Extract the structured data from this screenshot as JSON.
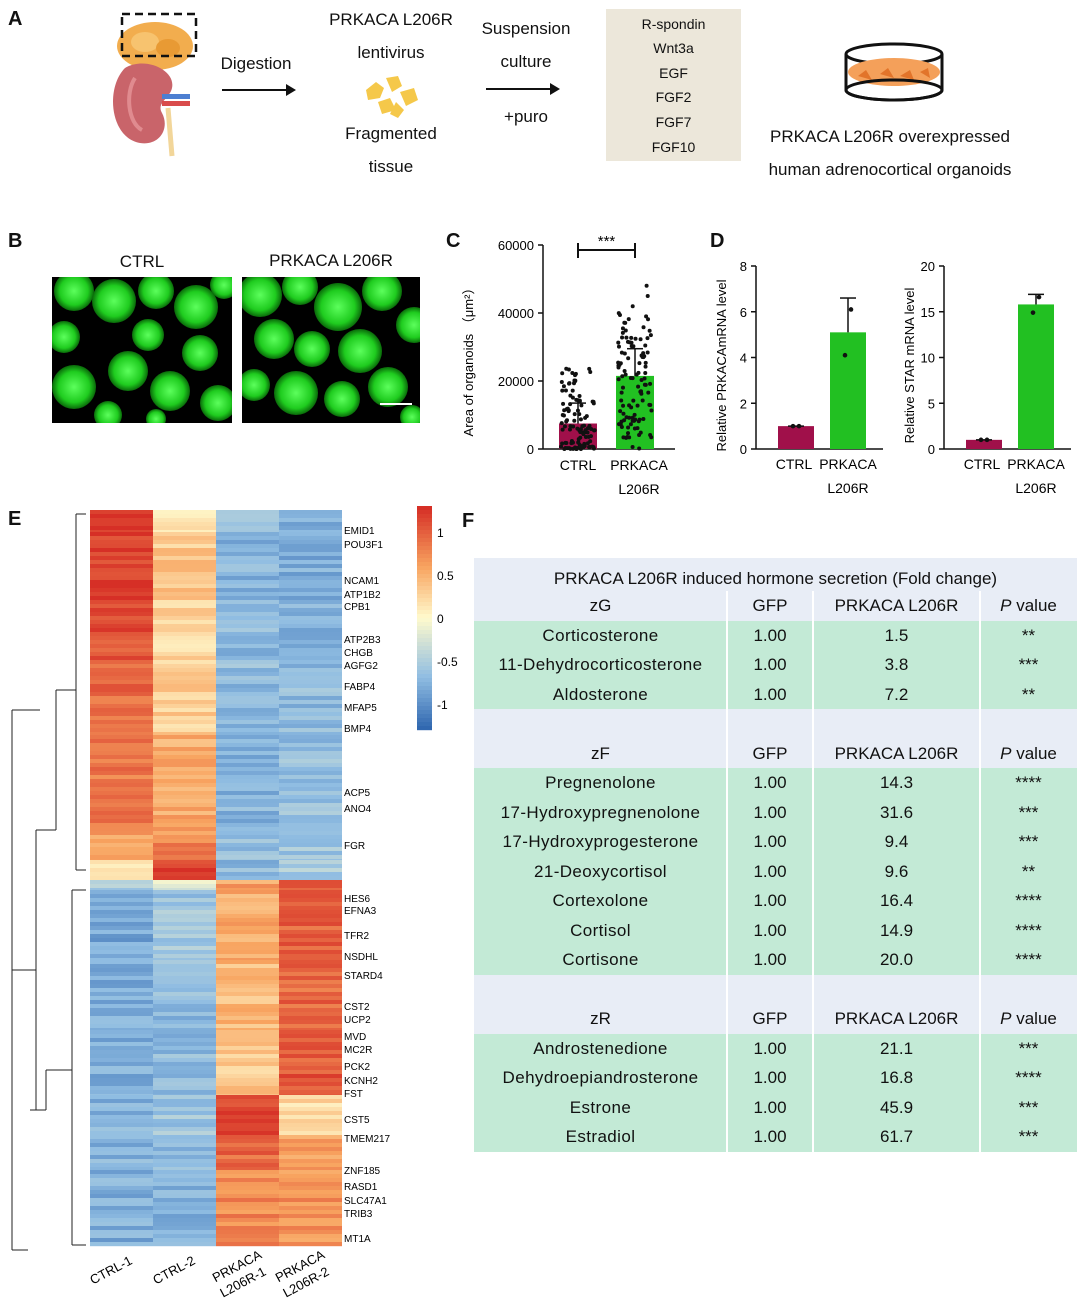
{
  "panelA": {
    "label": "A",
    "digestion": "Digestion",
    "lentivirus_line1": "PRKACA L206R",
    "lentivirus_line2": "lentivirus",
    "fragmented_line1": "Fragmented",
    "fragmented_line2": "tissue",
    "suspension_line1": "Suspension",
    "suspension_line2": "culture",
    "puro": "+puro",
    "factors": [
      "R-spondin",
      "Wnt3a",
      "EGF",
      "FGF2",
      "FGF7",
      "FGF10"
    ],
    "result_line1": "PRKACA L206R overexpressed",
    "result_line2": "human adrenocortical organoids"
  },
  "panelB": {
    "label": "B",
    "ctrl_title": "CTRL",
    "mut_title": "PRKACA L206R"
  },
  "panelC": {
    "label": "C",
    "ylabel": "Area of organoids （μm²）",
    "significance": "***",
    "xlabel_ctrl": "CTRL",
    "xlabel_mut_line1": "PRKACA",
    "xlabel_mut_line2": "L206R",
    "ticks": [
      "0",
      "20000",
      "40000",
      "60000"
    ]
  },
  "panelD": {
    "label": "D",
    "left_ylabel": "Relative PRKACAmRNA level",
    "right_ylabel": "Relative STAR mRNA level",
    "left_ticks": [
      "0",
      "2",
      "4",
      "6",
      "8"
    ],
    "right_ticks": [
      "0",
      "5",
      "10",
      "15",
      "20"
    ],
    "xlabel_ctrl": "CTRL",
    "xlabel_mut_line1": "PRKACA",
    "xlabel_mut_line2": "L206R"
  },
  "panelE": {
    "label": "E",
    "genes": [
      "EMID1",
      "POU3F1",
      "NCAM1",
      "ATP1B2",
      "CPB1",
      "ATP2B3",
      "CHGB",
      "AGFG2",
      "FABP4",
      "MFAP5",
      "BMP4",
      "ACP5",
      "ANO4",
      "FGR",
      "HES6",
      "EFNA3",
      "TFR2",
      "NSDHL",
      "STARD4",
      "CST2",
      "UCP2",
      "MVD",
      "MC2R",
      "PCK2",
      "KCNH2",
      "FST",
      "CST5",
      "TMEM217",
      "ZNF185",
      "RASD1",
      "SLC47A1",
      "TRIB3",
      "MT1A"
    ],
    "samples": [
      "CTRL-1",
      "CTRL-2",
      "PRKACA L206R-1",
      "PRKACA L206R-2"
    ],
    "scale": [
      "1",
      "0.5",
      "0",
      "-0.5",
      "-1"
    ]
  },
  "panelF": {
    "label": "F",
    "title": "PRKACA L206R induced hormone secretion (Fold change)",
    "col_gfp": "GFP",
    "col_mut": "PRKACA L206R",
    "col_p_italic": "P",
    "col_p_rest": " value",
    "zones": [
      {
        "name": "zG",
        "rows": [
          {
            "hormone": "Corticosterone",
            "gfp": "1.00",
            "fc": "1.5",
            "p": "**"
          },
          {
            "hormone": "11-Dehydrocorticosterone",
            "gfp": "1.00",
            "fc": "3.8",
            "p": "***"
          },
          {
            "hormone": "Aldosterone",
            "gfp": "1.00",
            "fc": "7.2",
            "p": "**"
          }
        ]
      },
      {
        "name": "zF",
        "rows": [
          {
            "hormone": "Pregnenolone",
            "gfp": "1.00",
            "fc": "14.3",
            "p": "****"
          },
          {
            "hormone": "17-Hydroxypregnenolone",
            "gfp": "1.00",
            "fc": "31.6",
            "p": "***"
          },
          {
            "hormone": "17-Hydroxyprogesterone",
            "gfp": "1.00",
            "fc": "9.4",
            "p": "***"
          },
          {
            "hormone": "21-Deoxycortisol",
            "gfp": "1.00",
            "fc": "9.6",
            "p": "**"
          },
          {
            "hormone": "Cortexolone",
            "gfp": "1.00",
            "fc": "16.4",
            "p": "****"
          },
          {
            "hormone": "Cortisol",
            "gfp": "1.00",
            "fc": "14.9",
            "p": "****"
          },
          {
            "hormone": "Cortisone",
            "gfp": "1.00",
            "fc": "20.0",
            "p": "****"
          }
        ]
      },
      {
        "name": "zR",
        "rows": [
          {
            "hormone": "Androstenedione",
            "gfp": "1.00",
            "fc": "21.1",
            "p": "***"
          },
          {
            "hormone": "Dehydroepiandrosterone",
            "gfp": "1.00",
            "fc": "16.8",
            "p": "****"
          },
          {
            "hormone": "Estrone",
            "gfp": "1.00",
            "fc": "45.9",
            "p": "***"
          },
          {
            "hormone": "Estradiol",
            "gfp": "1.00",
            "fc": "61.7",
            "p": "***"
          }
        ]
      }
    ]
  },
  "chart_data": [
    {
      "type": "bar",
      "categories": [
        "CTRL",
        "PRKACA L206R"
      ],
      "values": [
        7500,
        21500
      ],
      "error_upper": [
        13500,
        29500
      ],
      "ylim": [
        0,
        60000
      ],
      "ylabel": "Area of organoids （μm²）",
      "significance": "***",
      "colors": [
        "#a0104a",
        "#22c022"
      ]
    },
    {
      "type": "bar",
      "categories": [
        "CTRL",
        "PRKACA L206R"
      ],
      "values": [
        1.0,
        5.1
      ],
      "error_upper": [
        1.0,
        6.6
      ],
      "points": [
        [
          1.0,
          1.0
        ],
        [
          4.1,
          6.1
        ]
      ],
      "ylim": [
        0,
        8
      ],
      "ylabel": "Relative PRKACAmRNA level",
      "colors": [
        "#a0104a",
        "#22c022"
      ]
    },
    {
      "type": "bar",
      "categories": [
        "CTRL",
        "PRKACA L206R"
      ],
      "values": [
        1.0,
        15.8
      ],
      "error_upper": [
        1.0,
        16.9
      ],
      "points": [
        [
          1.0,
          1.0
        ],
        [
          14.9,
          16.6
        ]
      ],
      "ylim": [
        0,
        20
      ],
      "ylabel": "Relative STAR mRNA level",
      "colors": [
        "#a0104a",
        "#22c022"
      ]
    }
  ]
}
